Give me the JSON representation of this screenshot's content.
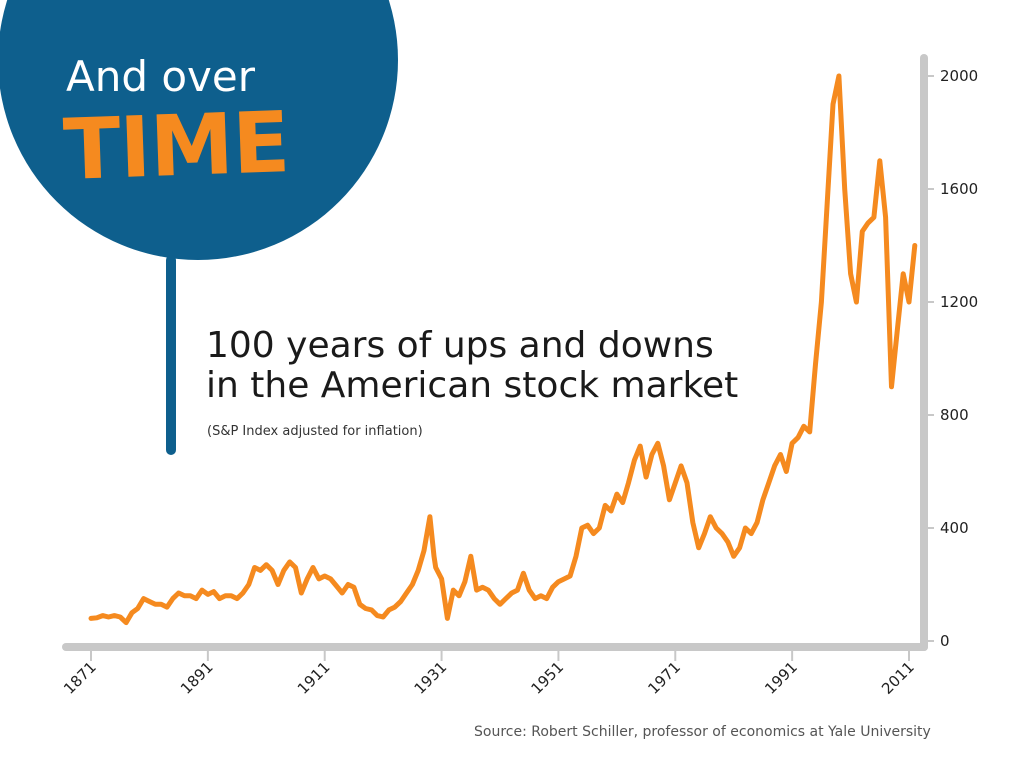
{
  "badge": {
    "heading": "And over",
    "word": "TIME",
    "circle_color": "#0e5f8d",
    "word_color": "#f58a1f"
  },
  "headline": {
    "line1": "100 years of ups and downs",
    "line2": "in the American stock market",
    "subtitle": "(S&P Index adjusted for inflation)"
  },
  "source": "Source: Robert Schiller, professor of economics at Yale University",
  "chart_data": {
    "type": "line",
    "title": "",
    "xlabel": "",
    "ylabel": "",
    "xlim": [
      1871,
      2014
    ],
    "ylim": [
      0,
      2000
    ],
    "x_ticks": [
      "1871",
      "1891",
      "1911",
      "1931",
      "1951",
      "1971",
      "1991",
      "2011"
    ],
    "y_ticks": [
      "0",
      "400",
      "800",
      "1200",
      "1600",
      "2000"
    ],
    "grid": false,
    "legend": "none",
    "line_color": "#f58a1f",
    "axis_color": "#c8c8c8",
    "x": [
      1871,
      1872,
      1873,
      1874,
      1875,
      1876,
      1877,
      1878,
      1879,
      1880,
      1881,
      1882,
      1883,
      1884,
      1885,
      1886,
      1887,
      1888,
      1889,
      1890,
      1891,
      1892,
      1893,
      1894,
      1895,
      1896,
      1897,
      1898,
      1899,
      1900,
      1901,
      1902,
      1903,
      1904,
      1905,
      1906,
      1907,
      1908,
      1909,
      1910,
      1911,
      1912,
      1913,
      1914,
      1915,
      1916,
      1917,
      1918,
      1919,
      1920,
      1921,
      1922,
      1923,
      1924,
      1925,
      1926,
      1927,
      1928,
      1929,
      1929.7,
      1930,
      1931,
      1932,
      1933,
      1934,
      1935,
      1936,
      1937,
      1938,
      1939,
      1940,
      1941,
      1942,
      1943,
      1944,
      1945,
      1946,
      1947,
      1948,
      1949,
      1950,
      1951,
      1952,
      1953,
      1954,
      1955,
      1956,
      1957,
      1958,
      1959,
      1960,
      1961,
      1962,
      1963,
      1964,
      1965,
      1966,
      1967,
      1968,
      1969,
      1970,
      1971,
      1972,
      1973,
      1974,
      1975,
      1976,
      1977,
      1978,
      1979,
      1980,
      1981,
      1982,
      1983,
      1984,
      1985,
      1986,
      1987,
      1988,
      1989,
      1990,
      1991,
      1992,
      1993,
      1994,
      1995,
      1996,
      1997,
      1998,
      1999,
      2000,
      2001,
      2002,
      2003,
      2004,
      2005,
      2006,
      2007,
      2008,
      2009,
      2010,
      2011,
      2012
    ],
    "series": [
      {
        "values": [
          80,
          82,
          90,
          85,
          90,
          85,
          65,
          100,
          115,
          150,
          140,
          130,
          130,
          120,
          150,
          170,
          160,
          160,
          150,
          180,
          165,
          175,
          150,
          160,
          160,
          150,
          170,
          200,
          260,
          250,
          270,
          250,
          200,
          250,
          280,
          260,
          170,
          220,
          260,
          220,
          230,
          220,
          195,
          170,
          200,
          190,
          130,
          115,
          110,
          90,
          85,
          110,
          120,
          140,
          170,
          200,
          250,
          320,
          440,
          300,
          260,
          220,
          80,
          180,
          160,
          210,
          300,
          180,
          190,
          180,
          150,
          130,
          150,
          170,
          180,
          240,
          180,
          150,
          160,
          150,
          190,
          210,
          220,
          230,
          300,
          400,
          410,
          380,
          400,
          480,
          460,
          520,
          490,
          560,
          640,
          690,
          580,
          660,
          700,
          620,
          500,
          560,
          620,
          560,
          420,
          330,
          380,
          440,
          400,
          380,
          350,
          300,
          330,
          400,
          380,
          420,
          500,
          560,
          620,
          660,
          600,
          700,
          720,
          760,
          740,
          980,
          1200,
          1550,
          1900,
          2000,
          1600,
          1300,
          1200,
          1450,
          1480,
          1500,
          1700,
          1500,
          900,
          1100,
          1300,
          1200,
          1400
        ]
      }
    ]
  }
}
